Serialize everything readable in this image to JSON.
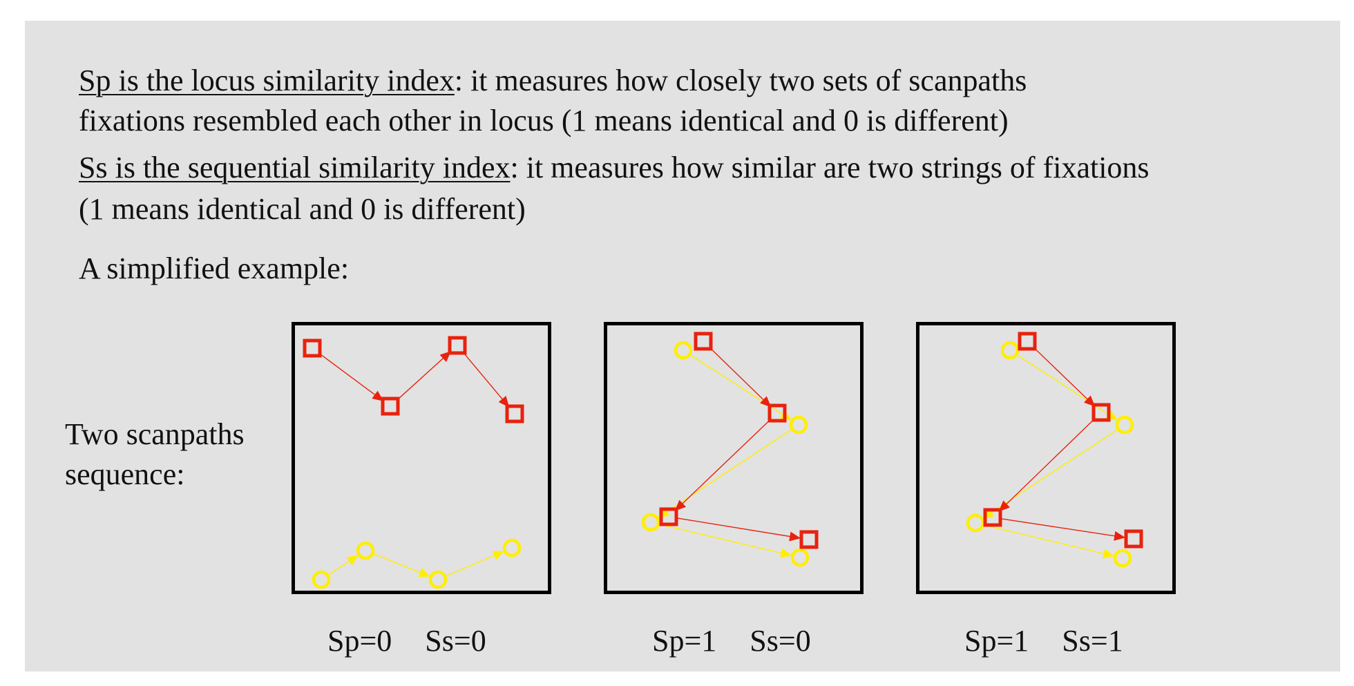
{
  "text": {
    "sp_term": "Sp is the locus similarity index",
    "sp_rest_1": ": it measures how closely two sets of scanpaths",
    "sp_rest_2": "fixations resembled each other in locus  (1 means identical and 0 is different)",
    "ss_term": "Ss is the sequential similarity index",
    "ss_rest_1": ": it measures how similar are two strings of fixations",
    "ss_rest_2": "(1 means identical and 0 is different)",
    "example": "A simplified example:",
    "side_label_1": "Two scanpaths",
    "side_label_2": "sequence:"
  },
  "colors": {
    "background": "#e2e2e2",
    "red_path": "#e8220e",
    "yellow_path": "#ffee00",
    "frame": "#000000"
  },
  "icons": {
    "red_fixation": "square-marker",
    "yellow_fixation": "circle-marker"
  },
  "panels": [
    {
      "sp_label": "Sp=0",
      "ss_label": "Ss=0"
    },
    {
      "sp_label": "Sp=1",
      "ss_label": "Ss=0"
    },
    {
      "sp_label": "Sp=1",
      "ss_label": "Ss=1"
    }
  ]
}
